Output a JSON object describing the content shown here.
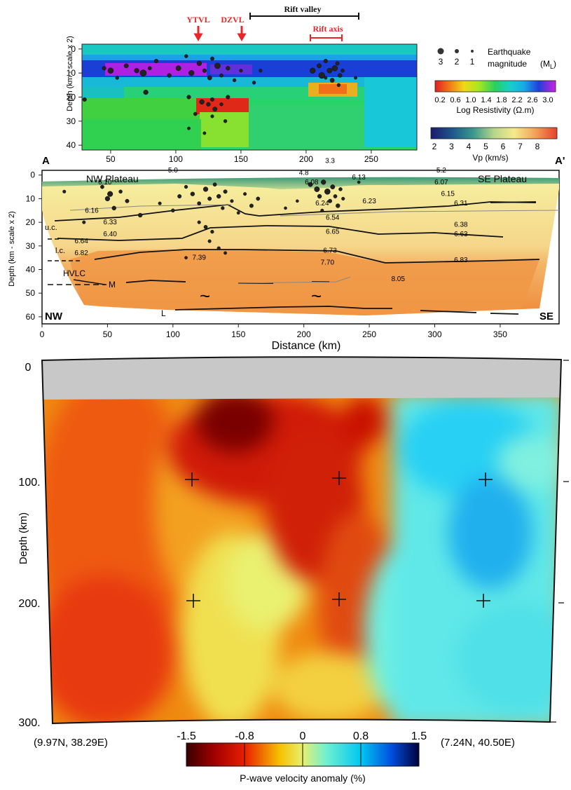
{
  "colors": {
    "accent_red": "#e8262a"
  },
  "panel_a": {
    "markers": {
      "ytvl": "YTVL",
      "dzvl": "DZVL",
      "rift_valley": "Rift valley",
      "rift_axis": "Rift axis"
    },
    "ylabel": "Depth (km - scale x 2)",
    "y_ticks": [
      "0",
      "10",
      "20",
      "30",
      "40"
    ],
    "x_ticks": [
      "50",
      "100",
      "150",
      "200",
      "250"
    ],
    "legend": {
      "eq_title": "Earthquake",
      "eq_subtitle": "magnitude",
      "eq_unit_main": "(M",
      "eq_unit_sub": "L",
      "eq_unit_close": ")",
      "eq_sizes": [
        "3",
        "2",
        "1"
      ],
      "res_ticks": [
        "0.2",
        "0.6",
        "1.0",
        "1.4",
        "1.8",
        "2.2",
        "2.6",
        "3.0"
      ],
      "res_label": "Log Resistivity (Ω.m)",
      "vp_ticks": [
        "2",
        "3",
        "4",
        "5",
        "6",
        "7",
        "8"
      ],
      "vp_label": "Vp (km/s)"
    }
  },
  "panel_b": {
    "a_label": "A",
    "a_prime_label": "A'",
    "nw_plateau": "NW Plateau",
    "se_plateau": "SE Plateau",
    "nw": "NW",
    "se": "SE",
    "layer_labels": {
      "uc": "u.c.",
      "lc": "l.c.",
      "hvlc": "HVLC",
      "m": "M",
      "l": "L"
    },
    "ylabel": "Depth (km - scale x 2)",
    "xlabel": "Distance (km)",
    "y_ticks": [
      "0",
      "10",
      "20",
      "30",
      "40",
      "50",
      "60"
    ],
    "x_ticks": [
      "0",
      "50",
      "100",
      "150",
      "200",
      "250",
      "300",
      "350"
    ],
    "tilde": "~"
  },
  "panel_c": {
    "ylabel": "Depth (km)",
    "y_ticks": [
      "0",
      "100.",
      "200.",
      "300."
    ],
    "left_coord": "(9.97N,  38.29E)",
    "right_coord": "(7.24N,  40.50E)",
    "cbar_ticks": [
      "-1.5",
      "-0.8",
      "0",
      "0.8",
      "1.5"
    ],
    "cbar_label": "P-wave velocity anomaly (%)"
  },
  "chart_data": [
    {
      "type": "scatter",
      "title": "",
      "xlabel": "",
      "ylabel": "Depth (km - scale x 2)",
      "xlim": [
        28,
        285
      ],
      "ylim": [
        42,
        -2
      ],
      "grid": false,
      "legend_placement": "right",
      "background": "Log Resistivity (Ω.m) section",
      "series": [
        {
          "name": "Earthquake magnitude (ML)",
          "points": [
            {
              "x": 45,
              "y": 8,
              "m": 1.5
            },
            {
              "x": 50,
              "y": 9,
              "m": 2.5
            },
            {
              "x": 55,
              "y": 12,
              "m": 1.2
            },
            {
              "x": 62,
              "y": 7,
              "m": 1.8
            },
            {
              "x": 70,
              "y": 9,
              "m": 2.0
            },
            {
              "x": 75,
              "y": 10,
              "m": 3.0
            },
            {
              "x": 80,
              "y": 8,
              "m": 1.3
            },
            {
              "x": 85,
              "y": 5,
              "m": 1.5
            },
            {
              "x": 95,
              "y": 11,
              "m": 1.6
            },
            {
              "x": 102,
              "y": 8,
              "m": 2.2
            },
            {
              "x": 108,
              "y": 3,
              "m": 1.2
            },
            {
              "x": 112,
              "y": 10,
              "m": 2.4
            },
            {
              "x": 118,
              "y": 6,
              "m": 2.0
            },
            {
              "x": 122,
              "y": 9,
              "m": 1.5
            },
            {
              "x": 126,
              "y": 12,
              "m": 1.8
            },
            {
              "x": 128,
              "y": 4,
              "m": 1.4
            },
            {
              "x": 132,
              "y": 7,
              "m": 2.6
            },
            {
              "x": 135,
              "y": 11,
              "m": 1.3
            },
            {
              "x": 140,
              "y": 8,
              "m": 1.6
            },
            {
              "x": 145,
              "y": 13,
              "m": 1.2
            },
            {
              "x": 150,
              "y": 9,
              "m": 1.1
            },
            {
              "x": 77,
              "y": 18,
              "m": 2.0
            },
            {
              "x": 110,
              "y": 20,
              "m": 1.5
            },
            {
              "x": 120,
              "y": 22,
              "m": 2.0
            },
            {
              "x": 125,
              "y": 23,
              "m": 1.6
            },
            {
              "x": 128,
              "y": 21,
              "m": 1.4
            },
            {
              "x": 130,
              "y": 25,
              "m": 1.8
            },
            {
              "x": 135,
              "y": 23,
              "m": 1.2
            },
            {
              "x": 128,
              "y": 28,
              "m": 1.1
            },
            {
              "x": 138,
              "y": 30,
              "m": 1.2
            },
            {
              "x": 110,
              "y": 33,
              "m": 1.0
            },
            {
              "x": 122,
              "y": 35,
              "m": 1.0
            },
            {
              "x": 115,
              "y": 27,
              "m": 1.3
            },
            {
              "x": 140,
              "y": 20,
              "m": 1.5
            },
            {
              "x": 160,
              "y": 14,
              "m": 1.2
            },
            {
              "x": 165,
              "y": 9,
              "m": 1.1
            },
            {
              "x": 205,
              "y": 9,
              "m": 2.4
            },
            {
              "x": 210,
              "y": 7,
              "m": 1.8
            },
            {
              "x": 212,
              "y": 11,
              "m": 2.8
            },
            {
              "x": 215,
              "y": 5,
              "m": 1.5
            },
            {
              "x": 218,
              "y": 9,
              "m": 2.2
            },
            {
              "x": 220,
              "y": 13,
              "m": 1.8
            },
            {
              "x": 222,
              "y": 8,
              "m": 2.5
            },
            {
              "x": 224,
              "y": 6,
              "m": 1.4
            },
            {
              "x": 226,
              "y": 11,
              "m": 1.6
            },
            {
              "x": 228,
              "y": 9,
              "m": 1.3
            },
            {
              "x": 225,
              "y": 15,
              "m": 1.2
            },
            {
              "x": 215,
              "y": 12,
              "m": 1.0
            },
            {
              "x": 30,
              "y": 21,
              "m": 1.5
            },
            {
              "x": 238,
              "y": 12,
              "m": 1.0
            }
          ]
        }
      ]
    },
    {
      "type": "scatter",
      "title": "",
      "xlabel": "Distance (km)",
      "ylabel": "Depth (km - scale x 2)",
      "xlim": [
        0,
        395
      ],
      "ylim": [
        63,
        -2
      ],
      "grid": false,
      "background": "Vp (km/s) velocity model",
      "velocity_labels": [
        {
          "x": 48,
          "y": 3,
          "text": "6.10"
        },
        {
          "x": 100,
          "y": -2,
          "text": "5.0"
        },
        {
          "x": 200,
          "y": -1,
          "text": "4.8"
        },
        {
          "x": 220,
          "y": -6,
          "text": "3.3"
        },
        {
          "x": 305,
          "y": -2,
          "text": "5.2"
        },
        {
          "x": 206,
          "y": 3,
          "text": "6.08"
        },
        {
          "x": 242,
          "y": 1,
          "text": "6.13"
        },
        {
          "x": 305,
          "y": 3,
          "text": "6.07"
        },
        {
          "x": 38,
          "y": 15,
          "text": "6.16"
        },
        {
          "x": 214,
          "y": 12,
          "text": "6.24"
        },
        {
          "x": 250,
          "y": 11,
          "text": "6.23"
        },
        {
          "x": 310,
          "y": 8,
          "text": "6.15"
        },
        {
          "x": 320,
          "y": 12,
          "text": "6.31"
        },
        {
          "x": 52,
          "y": 20,
          "text": "6.33"
        },
        {
          "x": 52,
          "y": 25,
          "text": "6.40"
        },
        {
          "x": 222,
          "y": 18,
          "text": "6.54"
        },
        {
          "x": 320,
          "y": 21,
          "text": "6.38"
        },
        {
          "x": 30,
          "y": 28,
          "text": "6.64"
        },
        {
          "x": 222,
          "y": 24,
          "text": "6.65"
        },
        {
          "x": 320,
          "y": 25,
          "text": "6.63"
        },
        {
          "x": 30,
          "y": 33,
          "text": "6.82"
        },
        {
          "x": 220,
          "y": 32,
          "text": "6.73"
        },
        {
          "x": 120,
          "y": 35,
          "text": "7.39"
        },
        {
          "x": 218,
          "y": 37,
          "text": "7.70"
        },
        {
          "x": 320,
          "y": 36,
          "text": "6.83"
        },
        {
          "x": 272,
          "y": 44,
          "text": "8.05"
        }
      ],
      "series": [
        {
          "name": "",
          "points": [
            {
              "x": 17,
              "y": 7,
              "m": 1.2
            },
            {
              "x": 46,
              "y": 5,
              "m": 1.5
            },
            {
              "x": 50,
              "y": 10,
              "m": 2.2
            },
            {
              "x": 52,
              "y": 8,
              "m": 2.6
            },
            {
              "x": 55,
              "y": 14,
              "m": 1.8
            },
            {
              "x": 60,
              "y": 7,
              "m": 1.4
            },
            {
              "x": 65,
              "y": 11,
              "m": 1.6
            },
            {
              "x": 75,
              "y": 17,
              "m": 1.8
            },
            {
              "x": 90,
              "y": 12,
              "m": 1.2
            },
            {
              "x": 100,
              "y": 15,
              "m": 1.4
            },
            {
              "x": 105,
              "y": 9,
              "m": 1.6
            },
            {
              "x": 110,
              "y": 5,
              "m": 1.3
            },
            {
              "x": 115,
              "y": 8,
              "m": 1.8
            },
            {
              "x": 120,
              "y": 12,
              "m": 1.5
            },
            {
              "x": 125,
              "y": 6,
              "m": 2.2
            },
            {
              "x": 128,
              "y": 10,
              "m": 1.6
            },
            {
              "x": 132,
              "y": 4,
              "m": 1.5
            },
            {
              "x": 135,
              "y": 9,
              "m": 1.8
            },
            {
              "x": 138,
              "y": 14,
              "m": 1.3
            },
            {
              "x": 140,
              "y": 7,
              "m": 1.6
            },
            {
              "x": 145,
              "y": 11,
              "m": 1.2
            },
            {
              "x": 150,
              "y": 16,
              "m": 1.1
            },
            {
              "x": 155,
              "y": 8,
              "m": 1.2
            },
            {
              "x": 160,
              "y": 13,
              "m": 1.6
            },
            {
              "x": 165,
              "y": 10,
              "m": 1.5
            },
            {
              "x": 120,
              "y": 20,
              "m": 1.2
            },
            {
              "x": 125,
              "y": 22,
              "m": 1.5
            },
            {
              "x": 130,
              "y": 24,
              "m": 1.3
            },
            {
              "x": 128,
              "y": 28,
              "m": 1.2
            },
            {
              "x": 135,
              "y": 31,
              "m": 1.3
            },
            {
              "x": 140,
              "y": 33,
              "m": 1.1
            },
            {
              "x": 110,
              "y": 35,
              "m": 1.0
            },
            {
              "x": 32,
              "y": 20,
              "m": 1.2
            },
            {
              "x": 205,
              "y": 4,
              "m": 2.0
            },
            {
              "x": 210,
              "y": 6,
              "m": 2.5
            },
            {
              "x": 212,
              "y": 9,
              "m": 1.8
            },
            {
              "x": 215,
              "y": 3,
              "m": 2.2
            },
            {
              "x": 218,
              "y": 7,
              "m": 2.8
            },
            {
              "x": 220,
              "y": 11,
              "m": 1.6
            },
            {
              "x": 222,
              "y": 5,
              "m": 2.0
            },
            {
              "x": 224,
              "y": 9,
              "m": 1.5
            },
            {
              "x": 226,
              "y": 13,
              "m": 1.8
            },
            {
              "x": 228,
              "y": 6,
              "m": 1.4
            },
            {
              "x": 230,
              "y": 10,
              "m": 1.2
            },
            {
              "x": 214,
              "y": 15,
              "m": 1.2
            },
            {
              "x": 186,
              "y": 14,
              "m": 1.0
            },
            {
              "x": 195,
              "y": 11,
              "m": 1.0
            },
            {
              "x": 242,
              "y": 3,
              "m": 1.0
            }
          ]
        }
      ]
    },
    {
      "type": "heatmap",
      "title": "",
      "ylabel": "Depth (km)",
      "xlabel": "",
      "ylim": [
        0,
        300
      ],
      "colorbar": {
        "label": "P-wave velocity anomaly (%)",
        "range": [
          -1.5,
          1.5
        ],
        "ticks": [
          -1.5,
          -0.8,
          0,
          0.8,
          1.5
        ]
      },
      "endpoints": [
        "(9.97N,  38.29E)",
        "(7.24N,  40.50E)"
      ]
    }
  ]
}
